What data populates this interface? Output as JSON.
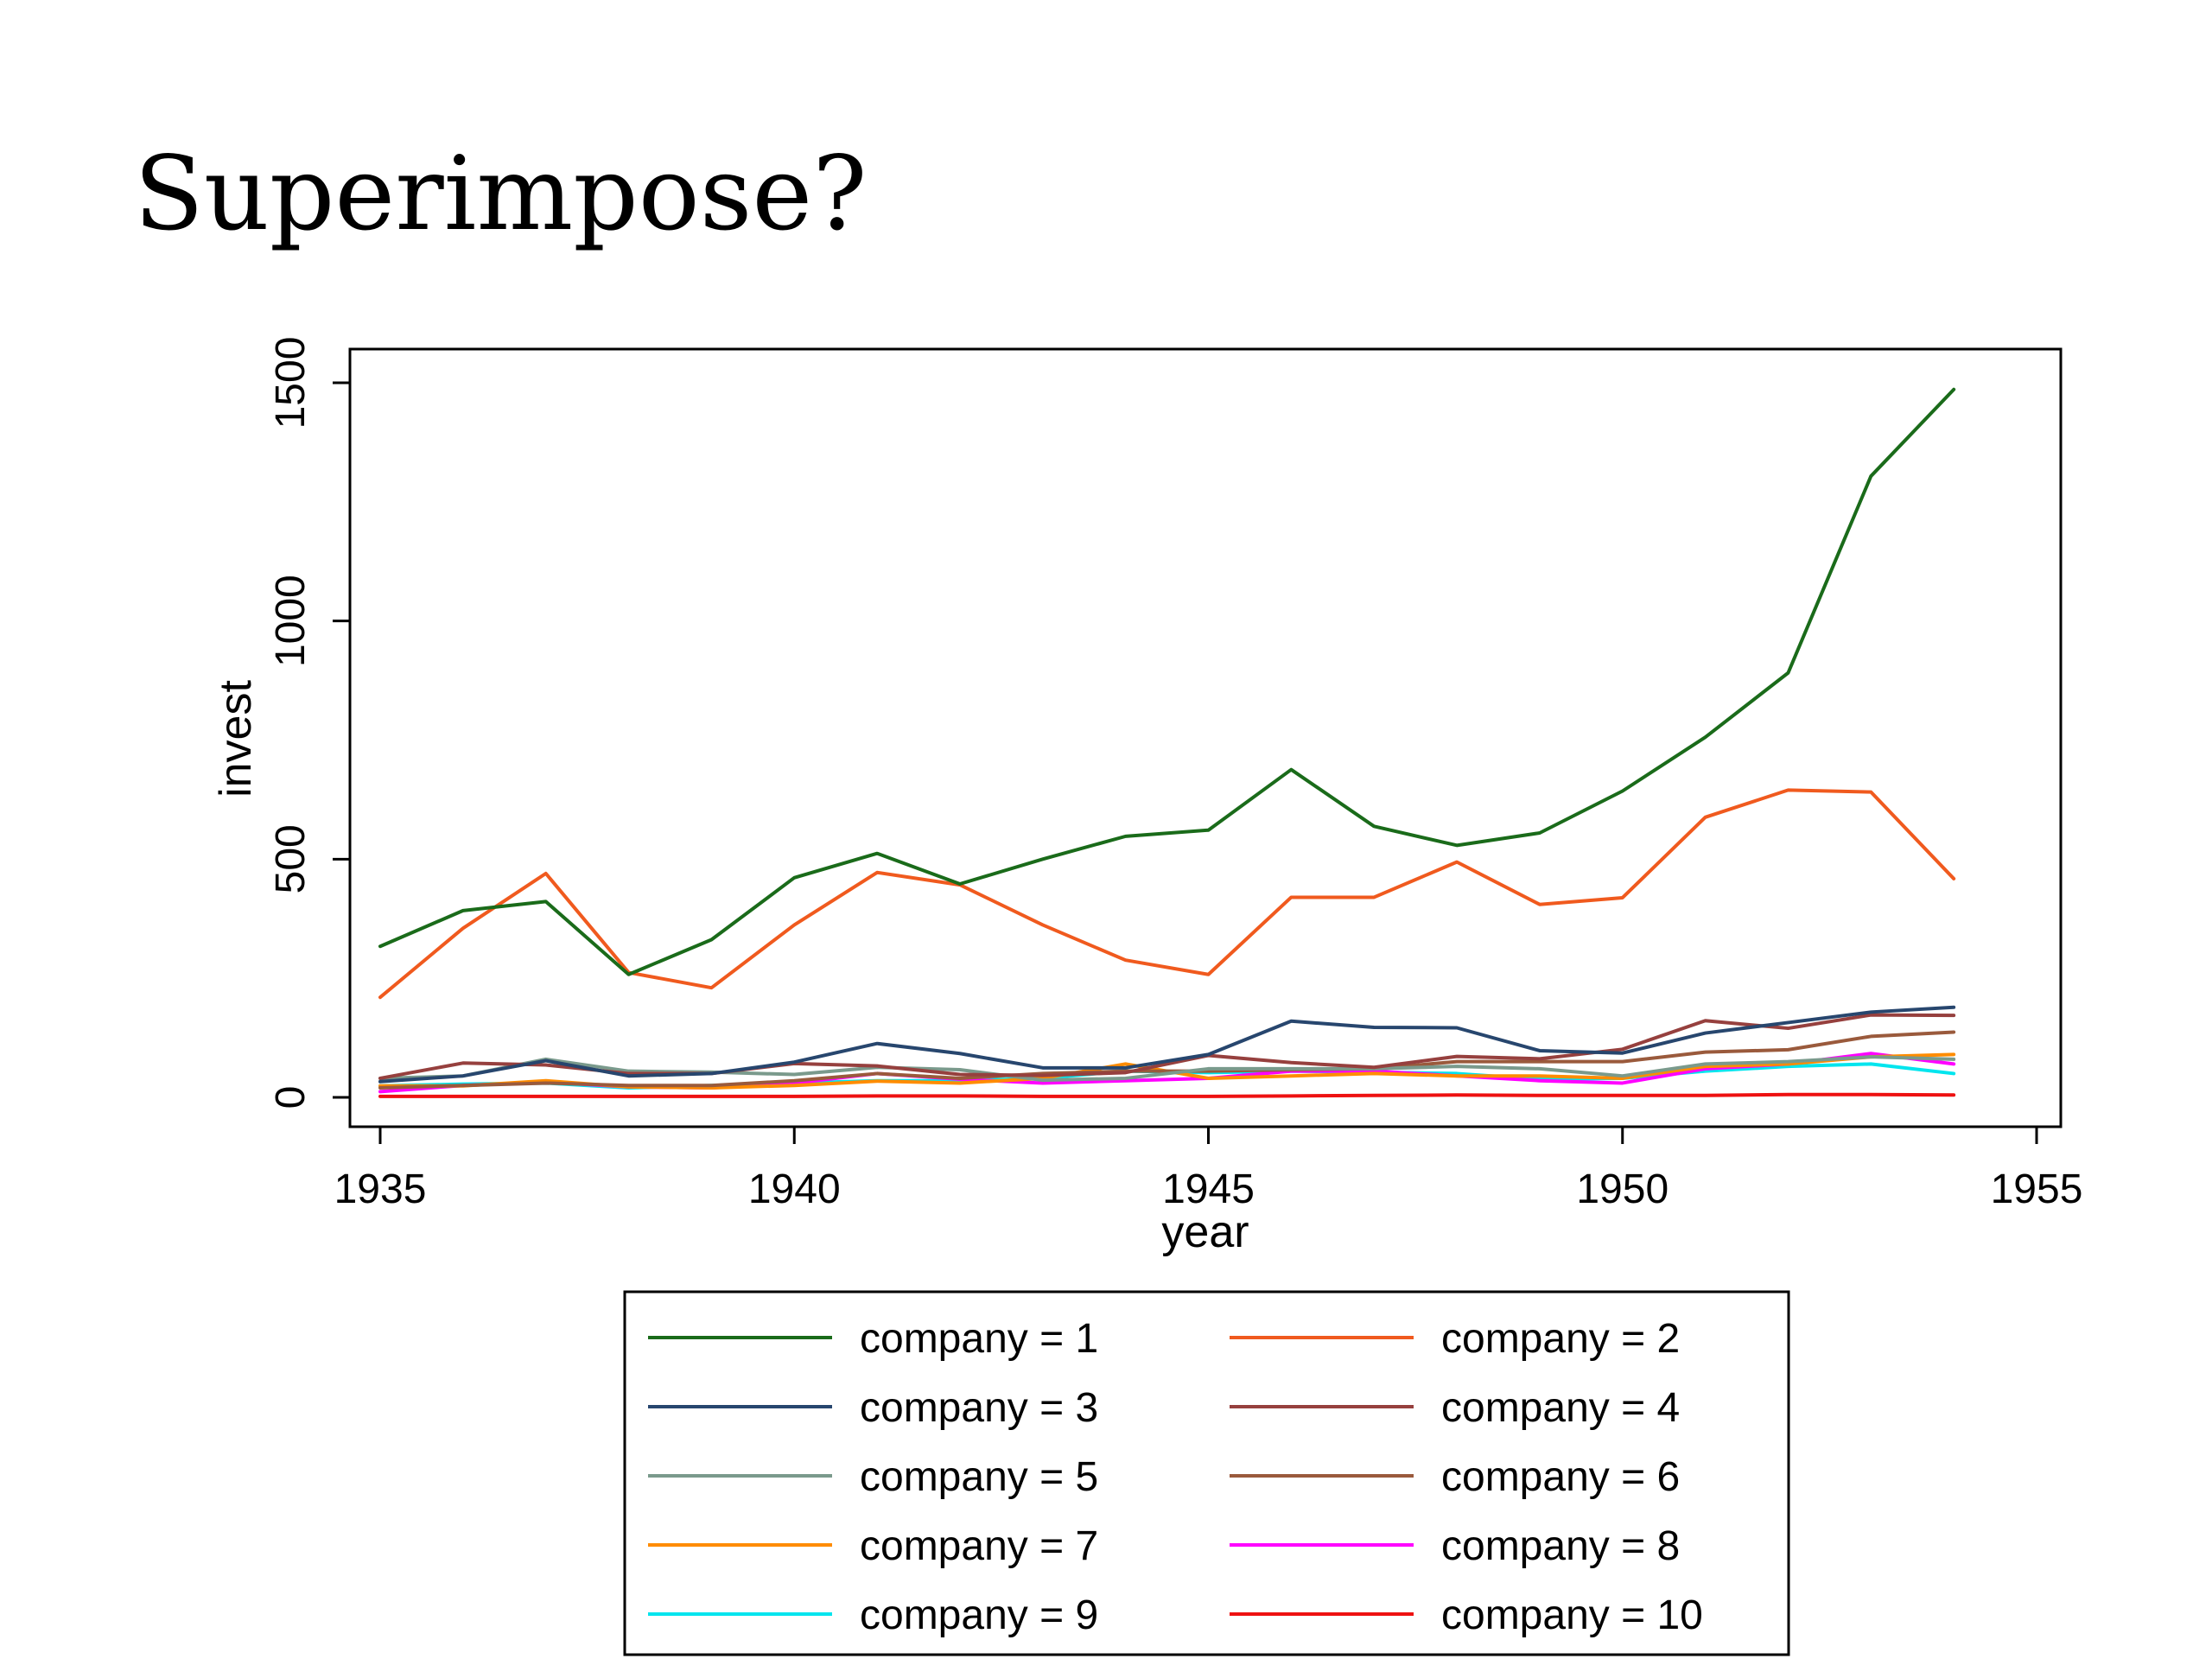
{
  "slide": {
    "title": "Superimpose?"
  },
  "chart_data": {
    "type": "line",
    "xlabel": "year",
    "ylabel": "invest",
    "xlim": [
      1935,
      1955
    ],
    "ylim": [
      0,
      1500
    ],
    "x_ticks": [
      1935,
      1940,
      1945,
      1950,
      1955
    ],
    "y_ticks": [
      0,
      500,
      1000,
      1500
    ],
    "grid": false,
    "legend_position": "bottom",
    "x": [
      1935,
      1936,
      1937,
      1938,
      1939,
      1940,
      1941,
      1942,
      1943,
      1944,
      1945,
      1946,
      1947,
      1948,
      1949,
      1950,
      1951,
      1952,
      1953,
      1954
    ],
    "series": [
      {
        "name": "company = 1",
        "color": "#1a6b1a",
        "values": [
          317,
          392,
          411,
          258,
          331,
          461,
          512,
          448,
          500,
          548,
          561,
          688,
          569,
          529,
          555,
          643,
          756,
          891,
          1304,
          1486
        ]
      },
      {
        "name": "company = 2",
        "color": "#f05a1e",
        "values": [
          210,
          355,
          470,
          262,
          230,
          362,
          472,
          446,
          362,
          288,
          258,
          420,
          420,
          494,
          405,
          419,
          588,
          645,
          641,
          459
        ]
      },
      {
        "name": "company = 3",
        "color": "#27466e",
        "values": [
          33,
          45,
          77,
          45,
          50,
          74,
          113,
          92,
          62,
          62,
          90,
          160,
          147,
          146,
          98,
          93,
          135,
          157,
          179,
          189
        ]
      },
      {
        "name": "company = 4",
        "color": "#96403e",
        "values": [
          40,
          72,
          68,
          50,
          50,
          71,
          66,
          48,
          46,
          52,
          88,
          73,
          63,
          86,
          81,
          101,
          161,
          145,
          173,
          172
        ]
      },
      {
        "name": "company = 5",
        "color": "#7a9a8c",
        "values": [
          40,
          45,
          80,
          55,
          53,
          48,
          63,
          58,
          36,
          40,
          60,
          60,
          60,
          65,
          60,
          45,
          70,
          75,
          85,
          80
        ]
      },
      {
        "name": "company = 6",
        "color": "#9a5a3c",
        "values": [
          20,
          25,
          30,
          25,
          25,
          35,
          50,
          40,
          50,
          55,
          55,
          58,
          60,
          75,
          75,
          75,
          95,
          100,
          128,
          137
        ]
      },
      {
        "name": "company = 7",
        "color": "#ff8c00",
        "values": [
          24,
          24,
          35,
          22,
          20,
          25,
          34,
          30,
          40,
          70,
          40,
          45,
          50,
          45,
          45,
          40,
          65,
          70,
          85,
          90
        ]
      },
      {
        "name": "company = 8",
        "color": "#ff00ff",
        "values": [
          12,
          25,
          32,
          22,
          20,
          30,
          50,
          38,
          30,
          35,
          40,
          55,
          55,
          45,
          35,
          30,
          60,
          70,
          92,
          70
        ]
      },
      {
        "name": "company = 9",
        "color": "#00e5ee",
        "values": [
          24,
          28,
          30,
          20,
          25,
          30,
          35,
          35,
          40,
          55,
          52,
          55,
          53,
          50,
          38,
          40,
          55,
          65,
          70,
          50
        ]
      },
      {
        "name": "company = 10",
        "color": "#ee1111",
        "values": [
          2,
          2,
          2,
          2,
          2,
          2,
          3,
          3,
          2,
          2,
          2,
          3,
          4,
          5,
          4,
          4,
          4,
          6,
          6,
          5
        ]
      }
    ]
  }
}
